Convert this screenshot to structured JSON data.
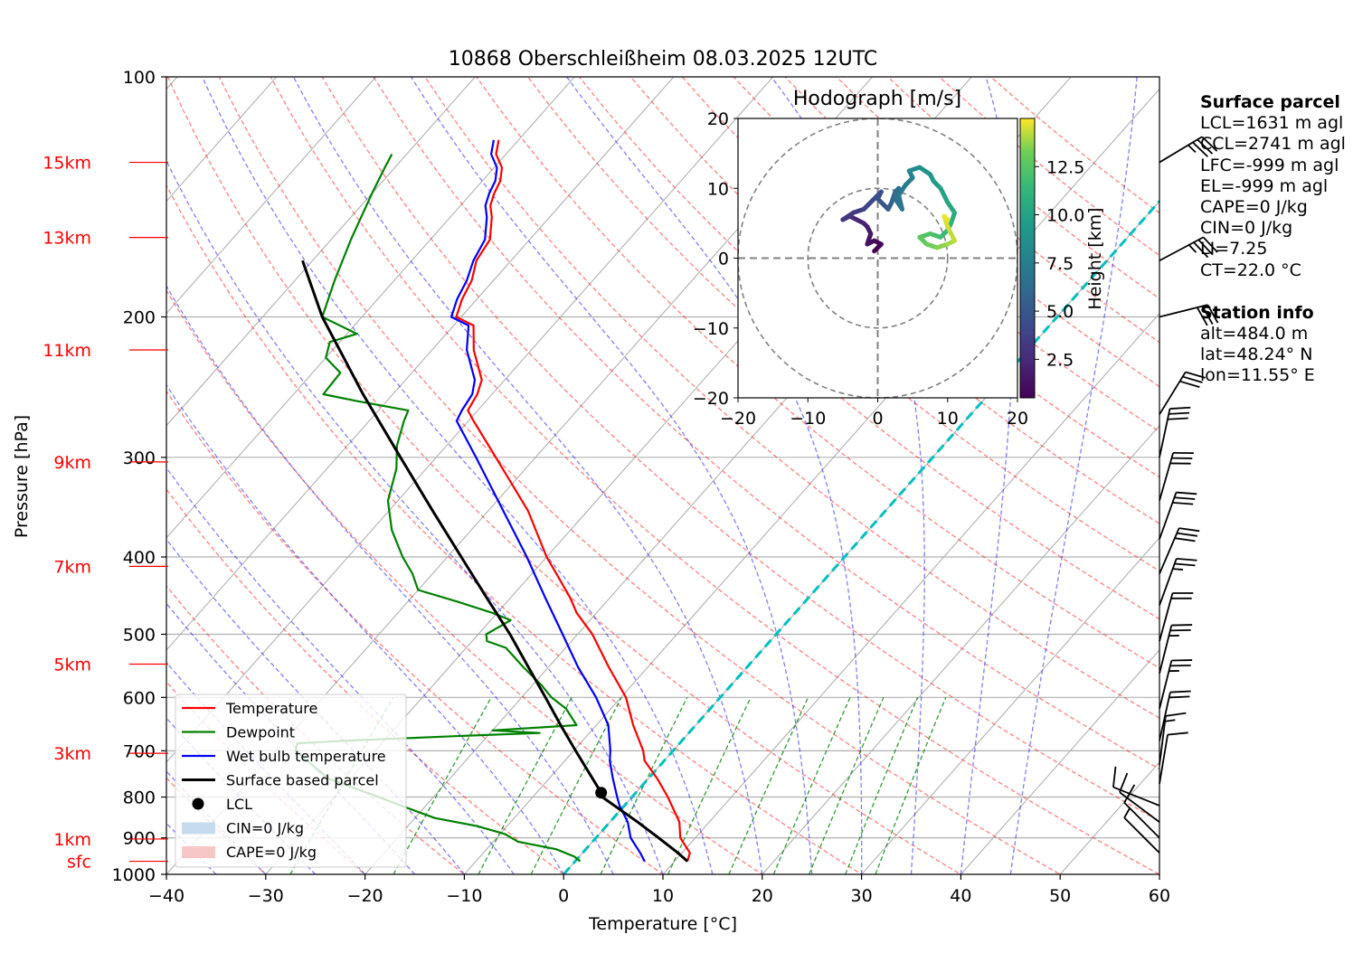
{
  "chart_data": {
    "type": "line",
    "title": "10868 Oberschleißheim 08.03.2025 12UTC",
    "xlabel": "Temperature [°C]",
    "ylabel": "Pressure [hPa]",
    "xlim": [
      -40,
      60
    ],
    "ylim": [
      1000,
      100
    ],
    "y_scale": "log",
    "x_ticks": [
      -40,
      -30,
      -20,
      -10,
      0,
      10,
      20,
      30,
      40,
      50,
      60
    ],
    "y_ticks": [
      100,
      200,
      300,
      400,
      500,
      600,
      700,
      800,
      900,
      1000
    ],
    "grid": true,
    "height_labels": [
      {
        "label": "15km",
        "p": 128
      },
      {
        "label": "13km",
        "p": 159
      },
      {
        "label": "11km",
        "p": 220
      },
      {
        "label": "9km",
        "p": 304
      },
      {
        "label": "7km",
        "p": 411
      },
      {
        "label": "5km",
        "p": 545
      },
      {
        "label": "3km",
        "p": 705
      },
      {
        "label": "1km",
        "p": 903
      },
      {
        "label": "sfc",
        "p": 963
      }
    ],
    "legend": {
      "placement": "lower-left",
      "entries": [
        {
          "label": "Temperature",
          "color": "#ff0000",
          "kind": "line"
        },
        {
          "label": "Dewpoint",
          "color": "#008000",
          "kind": "line"
        },
        {
          "label": "Wet bulb temperature",
          "color": "#0000ff",
          "kind": "line"
        },
        {
          "label": "Surface based parcel",
          "color": "#000000",
          "kind": "line"
        },
        {
          "label": "LCL",
          "color": "#000000",
          "kind": "marker"
        },
        {
          "label": "CIN=0 J/kg",
          "color": "#c6dbef",
          "kind": "patch"
        },
        {
          "label": "CAPE=0 J/kg",
          "color": "#f7c6c7",
          "kind": "patch"
        }
      ]
    },
    "series": [
      {
        "name": "Temperature",
        "color": "#ff0000",
        "points": [
          [
            963,
            11.3
          ],
          [
            940,
            10.8
          ],
          [
            900,
            8.5
          ],
          [
            860,
            7.0
          ],
          [
            800,
            3.6
          ],
          [
            760,
            1.0
          ],
          [
            720,
            -2.0
          ],
          [
            700,
            -3.0
          ],
          [
            650,
            -6.3
          ],
          [
            600,
            -9.5
          ],
          [
            550,
            -13.9
          ],
          [
            500,
            -18.5
          ],
          [
            470,
            -22.0
          ],
          [
            450,
            -24.0
          ],
          [
            420,
            -27.5
          ],
          [
            400,
            -30.0
          ],
          [
            350,
            -36.0
          ],
          [
            300,
            -44.0
          ],
          [
            270,
            -49.5
          ],
          [
            262,
            -51.0
          ],
          [
            250,
            -51.5
          ],
          [
            240,
            -52.3
          ],
          [
            220,
            -55.8
          ],
          [
            205,
            -58.0
          ],
          [
            200,
            -60.5
          ],
          [
            190,
            -61.5
          ],
          [
            180,
            -62.2
          ],
          [
            170,
            -63.5
          ],
          [
            160,
            -64.0
          ],
          [
            150,
            -65.8
          ],
          [
            145,
            -67.0
          ],
          [
            140,
            -67.7
          ],
          [
            135,
            -68.2
          ],
          [
            130,
            -69.2
          ],
          [
            125,
            -71.0
          ],
          [
            120,
            -72.0
          ]
        ]
      },
      {
        "name": "Wet bulb temperature",
        "color": "#0000ff",
        "points": [
          [
            963,
            7.0
          ],
          [
            940,
            5.8
          ],
          [
            900,
            3.5
          ],
          [
            860,
            1.8
          ],
          [
            820,
            -0.5
          ],
          [
            800,
            -1.5
          ],
          [
            760,
            -3.5
          ],
          [
            720,
            -5.5
          ],
          [
            700,
            -6.3
          ],
          [
            650,
            -8.8
          ],
          [
            600,
            -12.5
          ],
          [
            550,
            -17.0
          ],
          [
            500,
            -21.5
          ],
          [
            450,
            -26.5
          ],
          [
            400,
            -32.0
          ],
          [
            350,
            -38.5
          ],
          [
            300,
            -46.0
          ],
          [
            270,
            -51.2
          ],
          [
            262,
            -51.6
          ],
          [
            250,
            -52.0
          ],
          [
            240,
            -53.0
          ],
          [
            220,
            -56.5
          ],
          [
            205,
            -58.5
          ],
          [
            200,
            -61.0
          ],
          [
            190,
            -62.0
          ],
          [
            180,
            -62.7
          ],
          [
            170,
            -63.8
          ],
          [
            160,
            -64.5
          ],
          [
            150,
            -66.3
          ],
          [
            145,
            -67.5
          ],
          [
            140,
            -68.2
          ],
          [
            135,
            -68.7
          ],
          [
            130,
            -69.7
          ],
          [
            125,
            -71.5
          ],
          [
            120,
            -72.5
          ]
        ]
      },
      {
        "name": "Dewpoint",
        "color": "#008000",
        "points": [
          [
            963,
            0.5
          ],
          [
            950,
            -0.5
          ],
          [
            930,
            -3.0
          ],
          [
            910,
            -7.5
          ],
          [
            890,
            -9.5
          ],
          [
            870,
            -13.0
          ],
          [
            850,
            -18.0
          ],
          [
            820,
            -22.5
          ],
          [
            800,
            -25.5
          ],
          [
            760,
            -32.0
          ],
          [
            735,
            -34.5
          ],
          [
            720,
            -36.0
          ],
          [
            700,
            -38.0
          ],
          [
            685,
            -38.5
          ],
          [
            680,
            -34.0
          ],
          [
            670,
            -22.0
          ],
          [
            665,
            -15.0
          ],
          [
            660,
            -20.0
          ],
          [
            650,
            -12.0
          ],
          [
            620,
            -14.5
          ],
          [
            600,
            -17.0
          ],
          [
            580,
            -19.0
          ],
          [
            550,
            -22.5
          ],
          [
            520,
            -26.0
          ],
          [
            510,
            -28.5
          ],
          [
            500,
            -29.2
          ],
          [
            480,
            -28.0
          ],
          [
            470,
            -30.5
          ],
          [
            455,
            -35.0
          ],
          [
            440,
            -40.0
          ],
          [
            420,
            -42.0
          ],
          [
            400,
            -44.5
          ],
          [
            370,
            -48.0
          ],
          [
            340,
            -51.0
          ],
          [
            310,
            -53.0
          ],
          [
            290,
            -55.0
          ],
          [
            270,
            -56.5
          ],
          [
            262,
            -57.0
          ],
          [
            255,
            -63.0
          ],
          [
            250,
            -67.0
          ],
          [
            235,
            -67.2
          ],
          [
            225,
            -70.0
          ],
          [
            215,
            -71.0
          ],
          [
            210,
            -69.0
          ],
          [
            200,
            -74.0
          ],
          [
            180,
            -76.0
          ],
          [
            160,
            -78.0
          ],
          [
            140,
            -80.0
          ],
          [
            130,
            -81.0
          ],
          [
            125,
            -81.5
          ]
        ]
      },
      {
        "name": "Surface based parcel",
        "color": "#000000",
        "points": [
          [
            963,
            11.3
          ],
          [
            940,
            9.6
          ],
          [
            900,
            6.3
          ],
          [
            860,
            2.8
          ],
          [
            800,
            -3.0
          ],
          [
            790,
            -3.5
          ],
          [
            750,
            -6.2
          ],
          [
            700,
            -9.8
          ],
          [
            650,
            -13.6
          ],
          [
            600,
            -17.6
          ],
          [
            550,
            -22.0
          ],
          [
            500,
            -26.8
          ],
          [
            450,
            -32.4
          ],
          [
            400,
            -38.6
          ],
          [
            350,
            -45.6
          ],
          [
            300,
            -53.6
          ],
          [
            250,
            -63.0
          ],
          [
            200,
            -74.0
          ],
          [
            170,
            -81.0
          ]
        ]
      }
    ],
    "lcl": {
      "p": 790,
      "t": -3.5
    },
    "hodograph": {
      "title": "Hodograph [m/s]",
      "xlim": [
        -20,
        20
      ],
      "ylim": [
        -20,
        20
      ],
      "ticks": [
        -20,
        -10,
        0,
        10,
        20
      ],
      "rings": [
        10,
        20
      ],
      "colorbar_label": "Height [km]",
      "colorbar_ticks": [
        "2.5",
        "5.0",
        "7.5",
        "10.0",
        "12.5"
      ],
      "colorbar_range": [
        0.5,
        15
      ],
      "points": [
        [
          -0.5,
          1.0,
          0.5
        ],
        [
          0.5,
          2.0,
          0.8
        ],
        [
          -0.5,
          2.5,
          1.0
        ],
        [
          -1.5,
          2.0,
          1.3
        ],
        [
          -1.0,
          3.5,
          1.6
        ],
        [
          -1.5,
          4.5,
          1.9
        ],
        [
          -2.0,
          5.0,
          2.2
        ],
        [
          -3.0,
          5.5,
          2.5
        ],
        [
          -4.0,
          6.0,
          2.8
        ],
        [
          -5.0,
          5.5,
          3.1
        ],
        [
          -3.5,
          6.5,
          3.4
        ],
        [
          -2.0,
          7.0,
          3.8
        ],
        [
          -1.0,
          8.0,
          4.2
        ],
        [
          0.5,
          9.5,
          4.6
        ],
        [
          0.0,
          8.5,
          4.9
        ],
        [
          1.5,
          7.0,
          5.3
        ],
        [
          2.0,
          8.0,
          5.7
        ],
        [
          2.5,
          9.5,
          6.0
        ],
        [
          3.0,
          10.0,
          6.3
        ],
        [
          2.5,
          8.5,
          6.6
        ],
        [
          3.5,
          7.0,
          6.9
        ],
        [
          3.0,
          9.0,
          7.2
        ],
        [
          4.0,
          10.5,
          7.5
        ],
        [
          5.0,
          11.5,
          7.9
        ],
        [
          4.5,
          12.5,
          8.3
        ],
        [
          6.0,
          13.0,
          8.7
        ],
        [
          7.5,
          12.0,
          9.1
        ],
        [
          8.0,
          11.0,
          9.5
        ],
        [
          9.0,
          10.0,
          9.9
        ],
        [
          10.0,
          8.0,
          10.3
        ],
        [
          11.0,
          6.5,
          10.7
        ],
        [
          10.5,
          5.0,
          11.1
        ],
        [
          10.0,
          4.0,
          11.5
        ],
        [
          9.0,
          3.0,
          11.9
        ],
        [
          7.5,
          3.5,
          12.3
        ],
        [
          6.0,
          3.0,
          12.7
        ],
        [
          7.0,
          2.0,
          13.1
        ],
        [
          8.5,
          1.5,
          13.5
        ],
        [
          10.0,
          2.0,
          13.9
        ],
        [
          11.0,
          2.5,
          14.2
        ],
        [
          10.0,
          4.5,
          14.5
        ],
        [
          9.5,
          6.0,
          14.8
        ],
        [
          10.0,
          5.5,
          15.0
        ]
      ]
    },
    "wind_barbs": [
      {
        "p": 128,
        "u": 15,
        "v": 9
      },
      {
        "p": 170,
        "u": 15,
        "v": 8
      },
      {
        "p": 200,
        "u": 16,
        "v": 4
      },
      {
        "p": 265,
        "u": 8,
        "v": 13
      },
      {
        "p": 300,
        "u": 3,
        "v": 14
      },
      {
        "p": 340,
        "u": 4,
        "v": 14
      },
      {
        "p": 380,
        "u": 5,
        "v": 14
      },
      {
        "p": 420,
        "u": 6,
        "v": 14
      },
      {
        "p": 460,
        "u": 4,
        "v": 11
      },
      {
        "p": 510,
        "u": 3,
        "v": 11
      },
      {
        "p": 560,
        "u": 3,
        "v": 12
      },
      {
        "p": 620,
        "u": 3,
        "v": 12
      },
      {
        "p": 680,
        "u": 2,
        "v": 9
      },
      {
        "p": 730,
        "u": 1,
        "v": 8
      },
      {
        "p": 770,
        "u": 1,
        "v": 6
      },
      {
        "p": 820,
        "u": -5,
        "v": 2
      },
      {
        "p": 860,
        "u": -4,
        "v": 3
      },
      {
        "p": 900,
        "u": -3,
        "v": 3
      },
      {
        "p": 940,
        "u": -1,
        "v": 1
      }
    ]
  },
  "panel": {
    "surface_title": "Surface parcel",
    "surface_lines": [
      "LCL=1631 m agl",
      "CCL=2741 m agl",
      "LFC=-999 m agl",
      "EL=-999 m agl",
      "CAPE=0 J/kg",
      "CIN=0 J/kg",
      "LI=7.25",
      "CT=22.0 °C"
    ],
    "station_title": "Station info",
    "station_lines": [
      "alt=484.0 m",
      "lat=48.24° N",
      "lon=11.55° E"
    ]
  }
}
